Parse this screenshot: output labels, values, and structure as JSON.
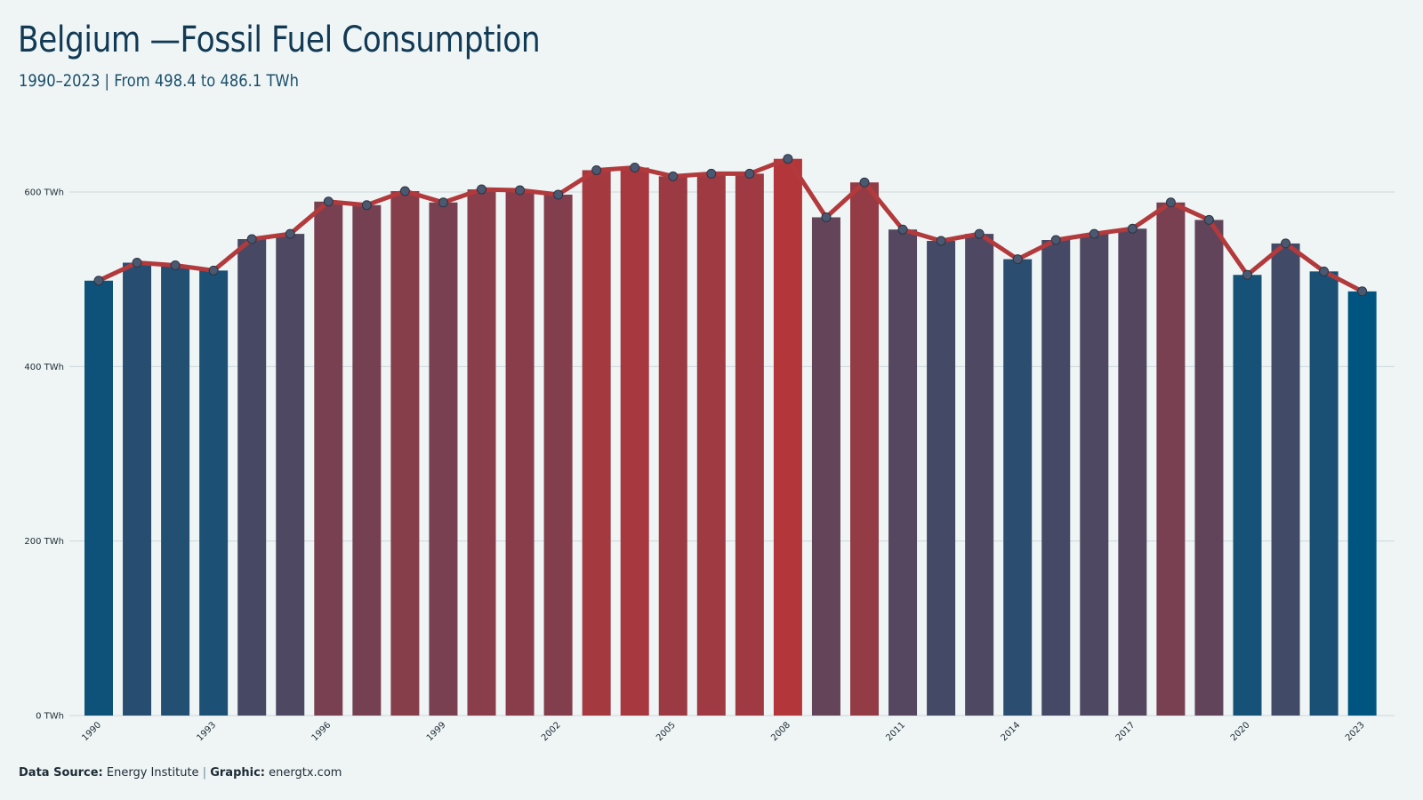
{
  "header": {
    "title": "Belgium —Fossil Fuel Consumption",
    "subtitle": "1990–2023 | From 498.4 to 486.1 TWh"
  },
  "footer": {
    "source_key": "Data Source:",
    "source_value": "Energy Institute",
    "separator": "|",
    "graphic_key": "Graphic:",
    "graphic_value": "energtx.com"
  },
  "colors": {
    "background": "#eff5f5",
    "line": "#b33a3c",
    "low": "#005580",
    "high": "#b3363a",
    "marker": "#4a5870"
  },
  "chart_data": {
    "type": "bar",
    "overlay": "line",
    "unit": "TWh",
    "categories": [
      "1990",
      "1991",
      "1992",
      "1993",
      "1994",
      "1995",
      "1996",
      "1997",
      "1998",
      "1999",
      "2000",
      "2001",
      "2002",
      "2003",
      "2004",
      "2005",
      "2006",
      "2007",
      "2008",
      "2009",
      "2010",
      "2011",
      "2012",
      "2013",
      "2014",
      "2015",
      "2016",
      "2017",
      "2018",
      "2019",
      "2020",
      "2021",
      "2022",
      "2023"
    ],
    "values": [
      498.4,
      519,
      516,
      510,
      546,
      552,
      589,
      585,
      601,
      588,
      603,
      602,
      597,
      625,
      628,
      618,
      621,
      621,
      638,
      571,
      611,
      557,
      544,
      552,
      523,
      545,
      552,
      558,
      588,
      568,
      505,
      541,
      509,
      486.1
    ],
    "x_tick_labels": [
      "1990",
      "1993",
      "1996",
      "1999",
      "2002",
      "2005",
      "2008",
      "2011",
      "2014",
      "2017",
      "2020",
      "2023"
    ],
    "y_ticks": [
      0,
      200,
      400,
      600
    ],
    "y_tick_labels": [
      "0 TWh",
      "200 TWh",
      "400 TWh",
      "600 TWh"
    ],
    "ylim": [
      0,
      600
    ],
    "grid": true,
    "legend": "none"
  }
}
